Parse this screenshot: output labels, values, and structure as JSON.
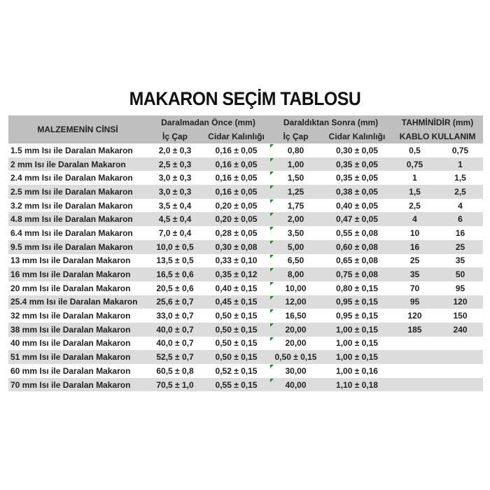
{
  "title": "MAKARON SEÇİM TABLOSU",
  "header": {
    "material": "MALZEMENİN CİNSİ",
    "before": "Daralmadan Önce (mm)",
    "after": "Daraldıktan Sonra (mm)",
    "estimate": "TAHMİNİDİR (mm)",
    "ic_cap": "İç Çap",
    "cidar": "Cidar Kalınlığı",
    "ic_cap2": "İç Çap",
    "cidar2": "Cidar Kalınlığı",
    "cable": "KABLO KULLANIM"
  },
  "rows": [
    [
      "1.5 mm Isı ile Daralan Makaron",
      "2,0 ± 0,3",
      "0,16 ± 0,05",
      "0,80",
      "0,30 ± 0,05",
      "0,5",
      "0,75"
    ],
    [
      "2 mm Isı ile Daralan Makaron",
      "2,5 ± 0,3",
      "0,16 ± 0,05",
      "1,00",
      "0,35 ± 0,05",
      "0,75",
      "1"
    ],
    [
      "2.4 mm Isı ile Daralan Makaron",
      "3,0 ± 0,3",
      "0,16 ± 0,05",
      "1,50",
      "0,35 ± 0,05",
      "1",
      "1,5"
    ],
    [
      "2.5 mm Isı ile Daralan Makaron",
      "3,0 ± 0,3",
      "0,16 ± 0,05",
      "1,25",
      "0,38 ± 0,05",
      "1,5",
      "2,5"
    ],
    [
      "3.2 mm Isı ile Daralan Makaron",
      "3,5 ± 0,4",
      "0,20 ± 0,05",
      "1,75",
      "0,40 ± 0,05",
      "2,5",
      "4"
    ],
    [
      "4.8 mm Isı ile Daralan Makaron",
      "4,5 ± 0,4",
      "0,20 ± 0,05",
      "2,00",
      "0,47 ± 0,05",
      "4",
      "6"
    ],
    [
      "6.4 mm Isı ile Daralan Makaron",
      "7,0 ± 0,4",
      "0,28 ± 0,05",
      "3,50",
      "0,55 ± 0,08",
      "10",
      "16"
    ],
    [
      "9.5 mm Isı ile Daralan Makaron",
      "10,0 ± 0,5",
      "0,30 ± 0,08",
      "5,00",
      "0,60 ± 0,08",
      "16",
      "25"
    ],
    [
      "13 mm Isı ile Daralan Makaron",
      "13,5 ± 0,5",
      "0,33 ± 0,10",
      "6,50",
      "0,65 ± 0,08",
      "25",
      "35"
    ],
    [
      "16 mm Isı ile Daralan Makaron",
      "16,5 ± 0,6",
      "0,35 ± 0,12",
      "8,00",
      "0,75 ± 0,08",
      "35",
      "50"
    ],
    [
      "20 mm Isı ile Daralan Makaron",
      "20,5 ± 0,6",
      "0,40 ± 0,15",
      "10,00",
      "0,80 ± 0,15",
      "70",
      "95"
    ],
    [
      "25.4 mm Isı ile Daralan Makaron",
      "25,6 ± 0,7",
      "0,45 ± 0,15",
      "12,00",
      "0,95 ± 0,15",
      "95",
      "120"
    ],
    [
      "32 mm Isı ile Daralan Makaron",
      "33,0 ± 0,7",
      "0,50 ± 0,15",
      "16,50",
      "0,95 ± 0,15",
      "120",
      "150"
    ],
    [
      "38 mm Isı ile Daralan Makaron",
      "40,0 ± 0,7",
      "0,50 ± 0,15",
      "20,00",
      "1,00 ± 0,15",
      "185",
      "240"
    ],
    [
      "40 mm Isı ile Daralan Makaron",
      "40,0 ± 0,7",
      "0,50 ± 0,15",
      "20,00",
      "1,00 ± 0,15",
      "",
      ""
    ],
    [
      "51 mm Isı ile Daralan Makaron",
      "52,5 ± 0,7",
      "0,50 ± 0,15",
      "0,50 ± 0,15",
      "1,00 ± 0,15",
      "",
      ""
    ],
    [
      "60 mm Isı ile Daralan Makaron",
      "60,5 ± 0,8",
      "0,52 ± 0,15",
      "30,00",
      "1,00 ± 0,16",
      "",
      ""
    ],
    [
      "70 mm Isı ile Daralan Makaron",
      "70,5 ± 1,0",
      "0,55 ± 0,15",
      "40,00",
      "1,10 ± 0,18",
      "",
      ""
    ]
  ]
}
